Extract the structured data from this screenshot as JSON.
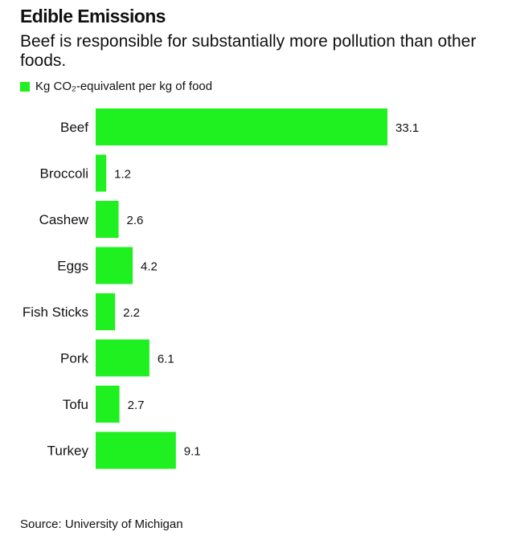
{
  "title": "Edible Emissions",
  "subtitle": "Beef is responsible for substantially more pollution than other foods.",
  "legend": {
    "label": "Kg CO₂-equivalent per kg of food"
  },
  "source": "Source: University of Michigan",
  "colors": {
    "bar": "#1ff01f",
    "text": "#111111"
  },
  "chart_data": {
    "type": "bar",
    "orientation": "horizontal",
    "title": "Edible Emissions",
    "subtitle": "Beef is responsible for substantially more pollution than other foods.",
    "categories": [
      "Beef",
      "Broccoli",
      "Cashew",
      "Eggs",
      "Fish Sticks",
      "Pork",
      "Tofu",
      "Turkey"
    ],
    "series": [
      {
        "name": "Kg CO₂-equivalent per kg of food",
        "values": [
          33.1,
          1.2,
          2.6,
          4.2,
          2.2,
          6.1,
          2.7,
          9.1
        ]
      }
    ],
    "data_labels": [
      "33.1",
      "1.2",
      "2.6",
      "4.2",
      "2.2",
      "6.1",
      "2.7",
      "9.1"
    ],
    "xlabel": "",
    "ylabel": "",
    "grid": false,
    "legend_position": "top-left"
  }
}
